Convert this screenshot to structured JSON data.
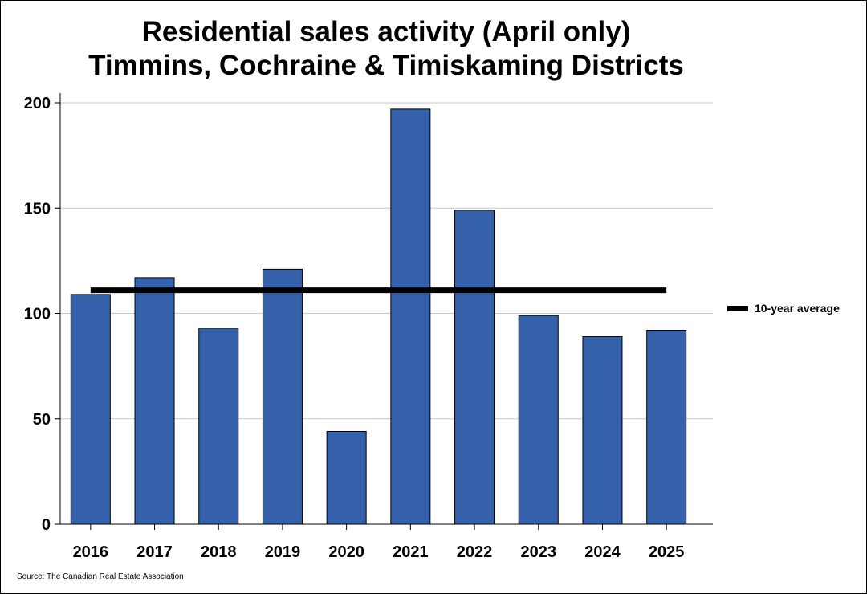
{
  "chart_data": {
    "type": "bar",
    "title": "Residential sales activity (April only)",
    "subtitle": "Timmins, Cochraine & Timiskaming Districts",
    "categories": [
      "2016",
      "2017",
      "2018",
      "2019",
      "2020",
      "2021",
      "2022",
      "2023",
      "2024",
      "2025"
    ],
    "values": [
      109,
      117,
      93,
      121,
      44,
      197,
      149,
      99,
      89,
      92
    ],
    "average": {
      "name": "10-year average",
      "value": 111
    },
    "ylim": [
      0,
      200
    ],
    "yticks": [
      0,
      50,
      100,
      150,
      200
    ],
    "grid": true,
    "xlabel": "",
    "ylabel": "",
    "legend": "right",
    "bar_color": "#3561ab",
    "average_color": "#000000"
  },
  "source": "Source: The Canadian Real Estate Association"
}
